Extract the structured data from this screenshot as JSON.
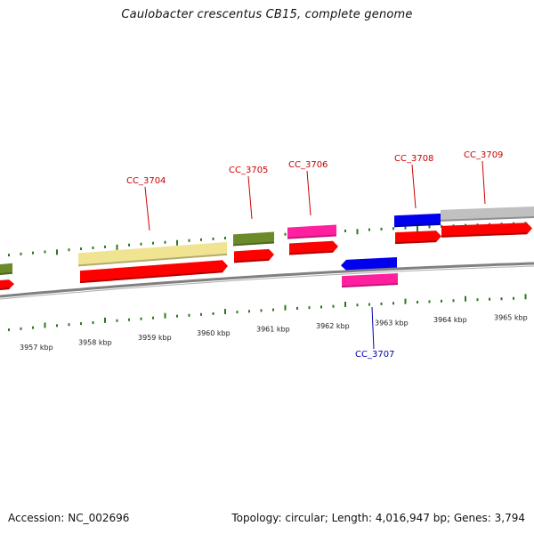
{
  "title": "Caulobacter crescentus CB15, complete genome",
  "footer": {
    "accession": "Accession: NC_002696",
    "summary": "Topology: circular; Length: 4,016,947 bp; Genes: 3,794"
  },
  "colors": {
    "backbone": "#808080",
    "tick": "#2a7a1a",
    "cds": "#ff0000",
    "gene_yellow": "#f0e492",
    "gene_olive": "#6b8a2a",
    "gene_magenta": "#ff20a0",
    "gene_blue": "#0000ee",
    "gene_gray": "#c0c0c0",
    "label_red": "#cc0000",
    "label_blue": "#0000aa"
  },
  "ticks": [
    "3957 kbp",
    "3958 kbp",
    "3959 kbp",
    "3960 kbp",
    "3961 kbp",
    "3962 kbp",
    "3963 kbp",
    "3964 kbp",
    "3965 kbp"
  ],
  "genes": [
    {
      "label": "CC_3704",
      "color": "red"
    },
    {
      "label": "CC_3705",
      "color": "red"
    },
    {
      "label": "CC_3706",
      "color": "red"
    },
    {
      "label": "CC_3707",
      "color": "blue"
    },
    {
      "label": "CC_3708",
      "color": "red"
    },
    {
      "label": "CC_3709",
      "color": "red"
    }
  ]
}
